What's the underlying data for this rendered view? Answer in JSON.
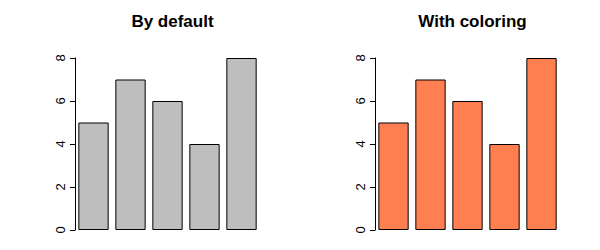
{
  "chart_data": [
    {
      "type": "bar",
      "title": "By default",
      "categories": [
        null,
        null,
        null,
        null,
        null
      ],
      "values": [
        5,
        7,
        6,
        4,
        8
      ],
      "color": "#bebebe",
      "ylim": [
        0,
        8
      ],
      "yticks": [
        0,
        2,
        4,
        6,
        8
      ],
      "grid": false,
      "tick_labels": "y"
    },
    {
      "type": "bar",
      "title": "With coloring",
      "categories": [
        null,
        null,
        null,
        null,
        null
      ],
      "values": [
        5,
        7,
        6,
        4,
        8
      ],
      "color": "#ff7f50",
      "ylim": [
        0,
        8
      ],
      "yticks": [
        0,
        2,
        4,
        6,
        8
      ],
      "grid": false,
      "tick_labels": "y"
    }
  ]
}
